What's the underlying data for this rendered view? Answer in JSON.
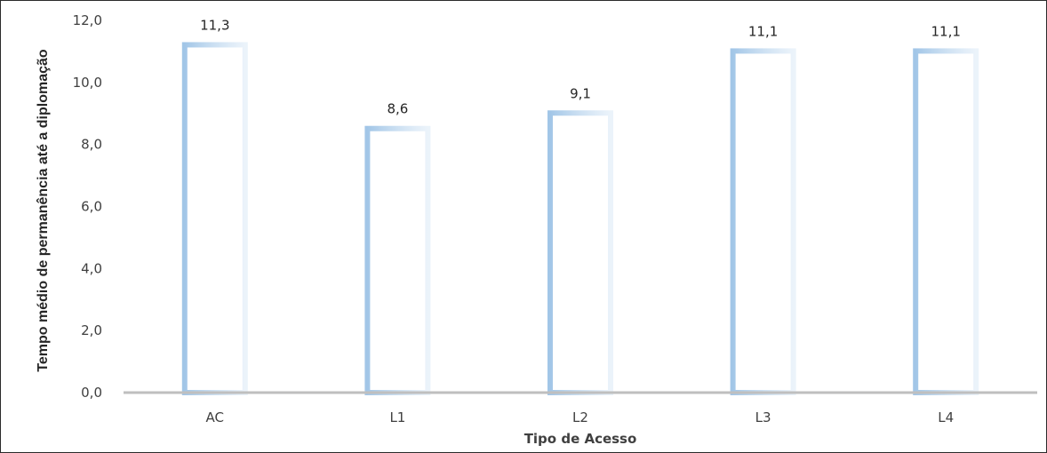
{
  "chart_data": {
    "type": "bar",
    "categories": [
      "AC",
      "L1",
      "L2",
      "L3",
      "L4"
    ],
    "values": [
      11.3,
      8.6,
      9.1,
      11.1,
      11.1
    ],
    "value_labels": [
      "11,3",
      "8,6",
      "9,1",
      "11,1",
      "11,1"
    ],
    "xlabel": "Tipo de Acesso",
    "ylabel": "Tempo médio de permanência até a diplomação",
    "ylim": [
      0,
      12
    ],
    "yticks": [
      0,
      2,
      4,
      6,
      8,
      10,
      12
    ],
    "ytick_labels": [
      "0,0",
      "2,0",
      "4,0",
      "6,0",
      "8,0",
      "10,0",
      "12,0"
    ],
    "grid": false,
    "legend": "none",
    "colors": {
      "bar_fill": "#ffffff",
      "bar_edge": "#9dc3e6",
      "axis_line": "#bfbfbf"
    }
  }
}
